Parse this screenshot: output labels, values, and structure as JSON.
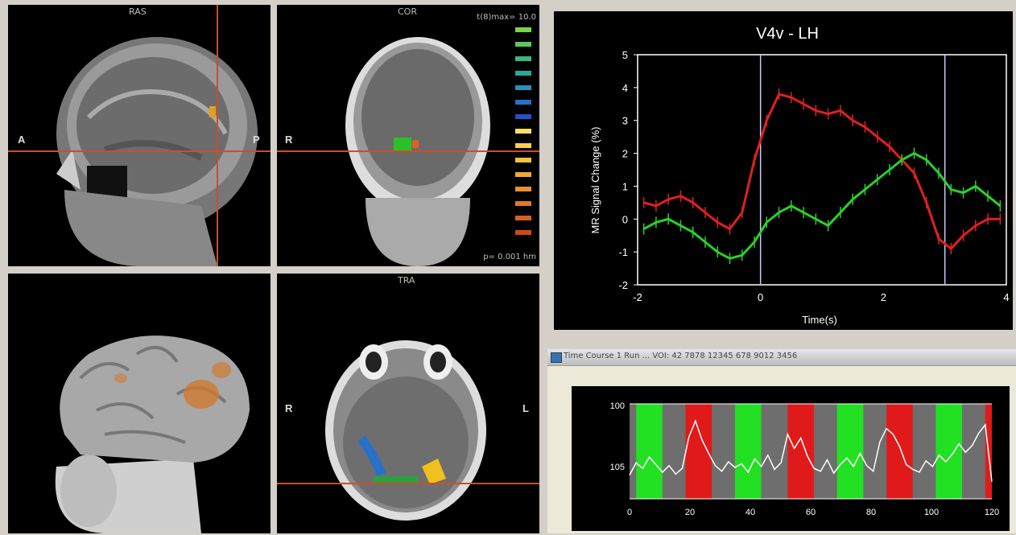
{
  "views": {
    "sagittal": {
      "orientation_label": "RAS",
      "left_marker": "A",
      "right_marker": "P"
    },
    "coronal": {
      "orientation_label": "COR",
      "left_marker": "R",
      "colorbar_top": "t(8)max= 10.0",
      "colorbar_bottom": "p= 0.001 hm"
    },
    "axial": {
      "orientation_label": "TRA",
      "left_marker": "R",
      "right_marker": "L"
    }
  },
  "colorbar": {
    "segments": [
      "#7fd04a",
      "#5ac85a",
      "#3cb878",
      "#2aa89a",
      "#2a90b8",
      "#2a70c8",
      "#2a50c8",
      "#ffe060",
      "#ffd050",
      "#f8c040",
      "#f0a838",
      "#e89030",
      "#e07828",
      "#d86020",
      "#d04818"
    ]
  },
  "chart_data": [
    {
      "type": "line",
      "title": "V4v - LH",
      "xlabel": "Time(s)",
      "ylabel": "MR Signal Change (%)",
      "xlim": [
        -2,
        4
      ],
      "ylim": [
        -2,
        5
      ],
      "x_ticks": [
        "-2",
        "0",
        "2",
        "4"
      ],
      "y_ticks": [
        "-2",
        "-1",
        "0",
        "1",
        "2",
        "3",
        "4",
        "5"
      ],
      "vertical_markers": [
        0,
        3
      ],
      "series": [
        {
          "color": "#e02020",
          "x": [
            -1.9,
            -1.7,
            -1.5,
            -1.3,
            -1.1,
            -0.9,
            -0.7,
            -0.5,
            -0.3,
            -0.1,
            0.1,
            0.3,
            0.5,
            0.7,
            0.9,
            1.1,
            1.3,
            1.5,
            1.7,
            1.9,
            2.1,
            2.3,
            2.5,
            2.7,
            2.9,
            3.1,
            3.3,
            3.5,
            3.7,
            3.9
          ],
          "y": [
            0.5,
            0.4,
            0.6,
            0.7,
            0.5,
            0.2,
            -0.1,
            -0.3,
            0.2,
            1.8,
            3.0,
            3.8,
            3.7,
            3.5,
            3.3,
            3.2,
            3.3,
            3.0,
            2.8,
            2.5,
            2.2,
            1.8,
            1.4,
            0.5,
            -0.6,
            -0.9,
            -0.5,
            -0.2,
            0.0,
            0.0
          ]
        },
        {
          "color": "#2ad02a",
          "x": [
            -1.9,
            -1.7,
            -1.5,
            -1.3,
            -1.1,
            -0.9,
            -0.7,
            -0.5,
            -0.3,
            -0.1,
            0.1,
            0.3,
            0.5,
            0.7,
            0.9,
            1.1,
            1.3,
            1.5,
            1.7,
            1.9,
            2.1,
            2.3,
            2.5,
            2.7,
            2.9,
            3.1,
            3.3,
            3.5,
            3.7,
            3.9
          ],
          "y": [
            -0.3,
            -0.1,
            0.0,
            -0.2,
            -0.4,
            -0.7,
            -1.0,
            -1.2,
            -1.1,
            -0.7,
            -0.1,
            0.2,
            0.4,
            0.2,
            0.0,
            -0.2,
            0.2,
            0.6,
            0.9,
            1.2,
            1.5,
            1.8,
            2.0,
            1.8,
            1.4,
            0.9,
            0.8,
            1.0,
            0.7,
            0.4
          ]
        }
      ]
    },
    {
      "type": "line",
      "xlim": [
        0,
        110
      ],
      "ylim": [
        95,
        105
      ],
      "y_ticks": [
        "100",
        "105"
      ],
      "x_ticks": [
        "0",
        "20",
        "40",
        "60",
        "80",
        "100",
        "120"
      ],
      "blocks": [
        {
          "start": 2,
          "end": 10,
          "color": "#22e022"
        },
        {
          "start": 10,
          "end": 17,
          "color": "#6e6e6e"
        },
        {
          "start": 17,
          "end": 25,
          "color": "#e01a1a"
        },
        {
          "start": 25,
          "end": 32,
          "color": "#6e6e6e"
        },
        {
          "start": 32,
          "end": 40,
          "color": "#22e022"
        },
        {
          "start": 40,
          "end": 48,
          "color": "#6e6e6e"
        },
        {
          "start": 48,
          "end": 56,
          "color": "#e01a1a"
        },
        {
          "start": 56,
          "end": 63,
          "color": "#6e6e6e"
        },
        {
          "start": 63,
          "end": 71,
          "color": "#22e022"
        },
        {
          "start": 71,
          "end": 78,
          "color": "#6e6e6e"
        },
        {
          "start": 78,
          "end": 86,
          "color": "#e01a1a"
        },
        {
          "start": 86,
          "end": 93,
          "color": "#6e6e6e"
        },
        {
          "start": 93,
          "end": 101,
          "color": "#22e022"
        },
        {
          "start": 101,
          "end": 108,
          "color": "#6e6e6e"
        },
        {
          "start": 108,
          "end": 116,
          "color": "#e01a1a"
        }
      ],
      "series": [
        {
          "color": "#ffffff",
          "x": [
            0,
            2,
            4,
            6,
            8,
            10,
            12,
            14,
            16,
            18,
            20,
            22,
            24,
            26,
            28,
            30,
            32,
            34,
            36,
            38,
            40,
            42,
            44,
            46,
            48,
            50,
            52,
            54,
            56,
            58,
            60,
            62,
            64,
            66,
            68,
            70,
            72,
            74,
            76,
            78,
            80,
            82,
            84,
            86,
            88,
            90,
            92,
            94,
            96,
            98,
            100,
            102,
            104,
            106,
            108,
            110
          ],
          "y": [
            97.5,
            98.8,
            98.2,
            99.4,
            98.6,
            97.8,
            98.5,
            97.6,
            98.2,
            101.5,
            103.2,
            101.2,
            99.8,
            98.5,
            97.9,
            98.9,
            98.3,
            98.7,
            97.8,
            99.2,
            98.4,
            99.6,
            98.1,
            98.8,
            101.8,
            100.3,
            101.4,
            99.5,
            98.2,
            97.9,
            99.1,
            97.7,
            98.6,
            99.3,
            98.4,
            99.8,
            98.5,
            97.9,
            101.0,
            102.4,
            101.8,
            100.5,
            98.6,
            98.1,
            97.8,
            99.0,
            98.4,
            99.6,
            98.9,
            99.7,
            100.8,
            99.9,
            100.6,
            101.9,
            102.8,
            96.8
          ]
        }
      ]
    }
  ],
  "time_course_window": {
    "title": "Time Course 1 Run ... VOI: 42 7878 12345 678 9012 3456"
  }
}
